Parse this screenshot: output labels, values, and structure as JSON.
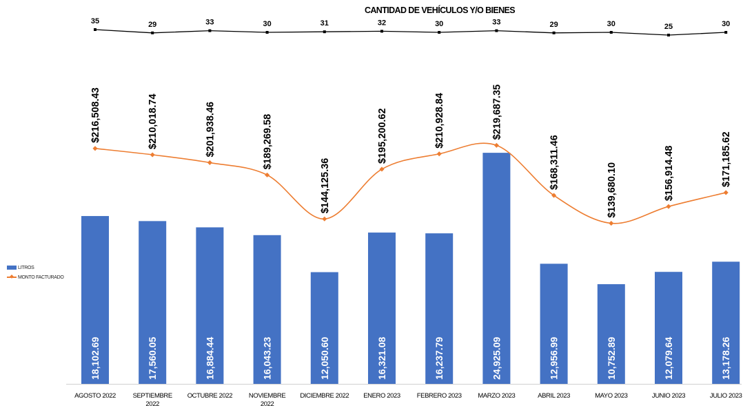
{
  "chart_data": {
    "type": "bar",
    "title": "CANTIDAD DE VEHÍCULOS Y/O BIENES",
    "categories": [
      [
        "AGOSTO 2022"
      ],
      [
        "SEPTIEMBRE",
        "2022"
      ],
      [
        "OCTUBRE 2022"
      ],
      [
        "NOVIEMBRE",
        "2022"
      ],
      [
        "DICIEMBRE 2022"
      ],
      [
        "ENERO 2023"
      ],
      [
        "FEBRERO 2023"
      ],
      [
        "MARZO 2023"
      ],
      [
        "ABRIL 2023"
      ],
      [
        "MAYO 2023"
      ],
      [
        "JUNIO 2023"
      ],
      [
        "JULIO 2023"
      ]
    ],
    "series": [
      {
        "name": "LITROS",
        "kind": "bar",
        "color": "#4472C4",
        "values": [
          18102.69,
          17560.05,
          16884.44,
          16043.23,
          12050.6,
          16321.08,
          16237.79,
          24925.09,
          12956.99,
          10752.89,
          12079.64,
          13178.26
        ],
        "labels": [
          "18,102.69",
          "17,560.05",
          "16,884.44",
          "16,043.23",
          "12,050.60",
          "16,321.08",
          "16,237.79",
          "24,925.09",
          "12,956.99",
          "10,752.89",
          "12,079.64",
          "13,178.26"
        ]
      },
      {
        "name": "MONTO FACTURADO",
        "kind": "line",
        "smooth": true,
        "color": "#ED7D31",
        "values": [
          216508.43,
          210018.74,
          201938.46,
          189269.58,
          144125.36,
          195200.62,
          210928.84,
          219687.35,
          168311.46,
          139680.1,
          156914.48,
          171185.62
        ],
        "labels": [
          "$216,508.43",
          "$210,018.74",
          "$201,938.46",
          "$189,269.58",
          "$144,125.36",
          "$195,200.62",
          "$210,928.84",
          "$219,687.35",
          "$168,311.46",
          "$139,680.10",
          "$156,914.48",
          "$171,185.62"
        ]
      },
      {
        "name": "CANTIDAD DE VEHÍCULOS Y/O BIENES",
        "kind": "line",
        "color": "#000000",
        "values": [
          35,
          29,
          33,
          30,
          31,
          32,
          30,
          33,
          29,
          30,
          25,
          30
        ],
        "labels": [
          "35",
          "29",
          "33",
          "30",
          "31",
          "32",
          "30",
          "33",
          "29",
          "30",
          "25",
          "30"
        ]
      }
    ],
    "legend": {
      "position": "left",
      "entries": [
        "LITROS",
        "MONTO FACTURADO"
      ]
    },
    "grid": false
  }
}
